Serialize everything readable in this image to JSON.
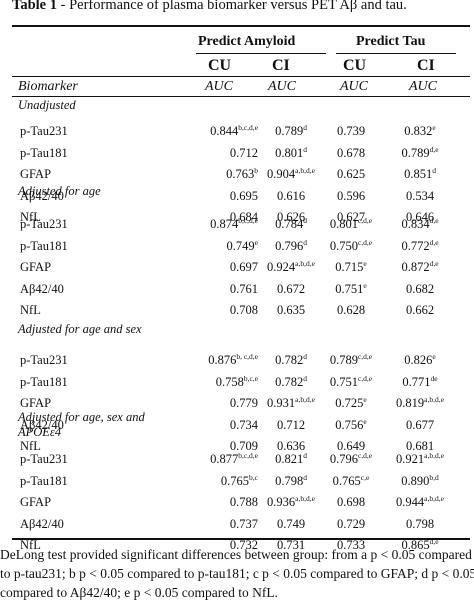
{
  "table_label": "Table 1",
  "title_rest": " - Performance of plasma biomarker versus PET Aβ and tau.",
  "header": {
    "group1": "Predict Amyloid",
    "group2": "Predict Tau",
    "cu": "CU",
    "ci": "CI",
    "biomarker": "Biomarker",
    "auc": "AUC"
  },
  "sections": [
    {
      "title": "Unadjusted",
      "rows": [
        {
          "label": "p-Tau231",
          "cells": [
            {
              "v": "0.844",
              "s": "b,c,d,e"
            },
            {
              "v": "0.789",
              "s": "d"
            },
            {
              "v": "0.739",
              "s": ""
            },
            {
              "v": "0.832",
              "s": "e"
            }
          ]
        },
        {
          "label": "p-Tau181",
          "cells": [
            {
              "v": "0.712",
              "s": ""
            },
            {
              "v": "0.801",
              "s": "d"
            },
            {
              "v": "0.678",
              "s": ""
            },
            {
              "v": "0.789",
              "s": "d,e"
            }
          ]
        },
        {
          "label": "GFAP",
          "cells": [
            {
              "v": "0.763",
              "s": "b"
            },
            {
              "v": "0.904",
              "s": "a,b,d,e"
            },
            {
              "v": "0.625",
              "s": ""
            },
            {
              "v": "0.851",
              "s": "d"
            }
          ]
        },
        {
          "label": "Aβ42/40",
          "cells": [
            {
              "v": "0.695",
              "s": ""
            },
            {
              "v": "0.616",
              "s": ""
            },
            {
              "v": "0.596",
              "s": ""
            },
            {
              "v": "0.534",
              "s": ""
            }
          ]
        },
        {
          "label": "NfL",
          "cells": [
            {
              "v": "0.684",
              "s": ""
            },
            {
              "v": "0.626",
              "s": ""
            },
            {
              "v": "0.627",
              "s": ""
            },
            {
              "v": "0.646",
              "s": ""
            }
          ]
        }
      ]
    },
    {
      "title": "Adjusted for age",
      "rows": [
        {
          "label": "p-Tau231",
          "cells": [
            {
              "v": "0.874",
              "s": "b,c,d,e"
            },
            {
              "v": "0.784",
              "s": "d"
            },
            {
              "v": "0.801",
              "s": "c,d,e"
            },
            {
              "v": "0.834",
              "s": "d,e"
            }
          ]
        },
        {
          "label": "p-Tau181",
          "cells": [
            {
              "v": "0.749",
              "s": "e"
            },
            {
              "v": "0.796",
              "s": "d"
            },
            {
              "v": "0.750",
              "s": "c,d,e"
            },
            {
              "v": "0.772",
              "s": "d,e"
            }
          ]
        },
        {
          "label": "GFAP",
          "cells": [
            {
              "v": "0.697",
              "s": ""
            },
            {
              "v": "0.924",
              "s": "a,b,d,e"
            },
            {
              "v": "0.715",
              "s": "e"
            },
            {
              "v": "0.872",
              "s": "d,e"
            }
          ]
        },
        {
          "label": "Aβ42/40",
          "cells": [
            {
              "v": "0.761",
              "s": ""
            },
            {
              "v": "0.672",
              "s": ""
            },
            {
              "v": "0.751",
              "s": "e"
            },
            {
              "v": "0.682",
              "s": ""
            }
          ]
        },
        {
          "label": "NfL",
          "cells": [
            {
              "v": "0.708",
              "s": ""
            },
            {
              "v": "0.635",
              "s": ""
            },
            {
              "v": "0.628",
              "s": ""
            },
            {
              "v": "0.662",
              "s": ""
            }
          ]
        }
      ]
    },
    {
      "title": "Adjusted for age and sex",
      "rows": [
        {
          "label": "p-Tau231",
          "cells": [
            {
              "v": "0.876",
              "s": "b, c,d,e"
            },
            {
              "v": "0.782",
              "s": "d"
            },
            {
              "v": "0.789",
              "s": "c,d,e"
            },
            {
              "v": "0.826",
              "s": "e"
            }
          ]
        },
        {
          "label": "p-Tau181",
          "cells": [
            {
              "v": "0.758",
              "s": "b,c,e"
            },
            {
              "v": "0.782",
              "s": "d"
            },
            {
              "v": "0.751",
              "s": "c,d,e"
            },
            {
              "v": "0.771",
              "s": "de"
            }
          ]
        },
        {
          "label": "GFAP",
          "cells": [
            {
              "v": "0.779",
              "s": ""
            },
            {
              "v": "0.931",
              "s": "a,b,d,e"
            },
            {
              "v": "0.725",
              "s": "e"
            },
            {
              "v": "0.819",
              "s": "a,b,d,e"
            }
          ]
        },
        {
          "label": "Aβ42/40",
          "cells": [
            {
              "v": "0.734",
              "s": ""
            },
            {
              "v": "0.712",
              "s": ""
            },
            {
              "v": "0.756",
              "s": "e"
            },
            {
              "v": "0.677",
              "s": ""
            }
          ]
        },
        {
          "label": "NfL",
          "cells": [
            {
              "v": "0.709",
              "s": ""
            },
            {
              "v": "0.636",
              "s": ""
            },
            {
              "v": "0.649",
              "s": ""
            },
            {
              "v": "0.681",
              "s": ""
            }
          ]
        }
      ]
    },
    {
      "title": "Adjusted for age, sex and",
      "title2": "APOEε4",
      "rows": [
        {
          "label": "p-Tau231",
          "cells": [
            {
              "v": "0.877",
              "s": "b,c,d,e"
            },
            {
              "v": "0.821",
              "s": "d"
            },
            {
              "v": "0.796",
              "s": "c,d,e"
            },
            {
              "v": "0.921",
              "s": "a,b,d,e"
            }
          ]
        },
        {
          "label": "p-Tau181",
          "cells": [
            {
              "v": "0.765",
              "s": "b,c"
            },
            {
              "v": "0.798",
              "s": "d"
            },
            {
              "v": "0.765",
              "s": "c,e"
            },
            {
              "v": "0.890",
              "s": "b,d"
            }
          ]
        },
        {
          "label": "GFAP",
          "cells": [
            {
              "v": "0.788",
              "s": ""
            },
            {
              "v": "0.936",
              "s": "a,b,d,e"
            },
            {
              "v": "0.698",
              "s": ""
            },
            {
              "v": "0.944",
              "s": "a,b,d,e"
            }
          ]
        },
        {
          "label": "Aβ42/40",
          "cells": [
            {
              "v": "0.737",
              "s": ""
            },
            {
              "v": "0.749",
              "s": ""
            },
            {
              "v": "0.729",
              "s": ""
            },
            {
              "v": "0.798",
              "s": ""
            }
          ]
        },
        {
          "label": "NfL",
          "cells": [
            {
              "v": "0.732",
              "s": ""
            },
            {
              "v": "0.731",
              "s": ""
            },
            {
              "v": "0.733",
              "s": ""
            },
            {
              "v": "0.865",
              "s": "d,e"
            }
          ]
        }
      ]
    }
  ],
  "footnote": {
    "line1": "DeLong test provided significant differences between group: from a p < 0.05 compared",
    "line2": "to p-tau231; b p < 0.05 compared to p-tau181; c p < 0.05 compared to GFAP; d p < 0.05",
    "line3": "compared to Aβ42/40; e p < 0.05 compared to NfL."
  }
}
